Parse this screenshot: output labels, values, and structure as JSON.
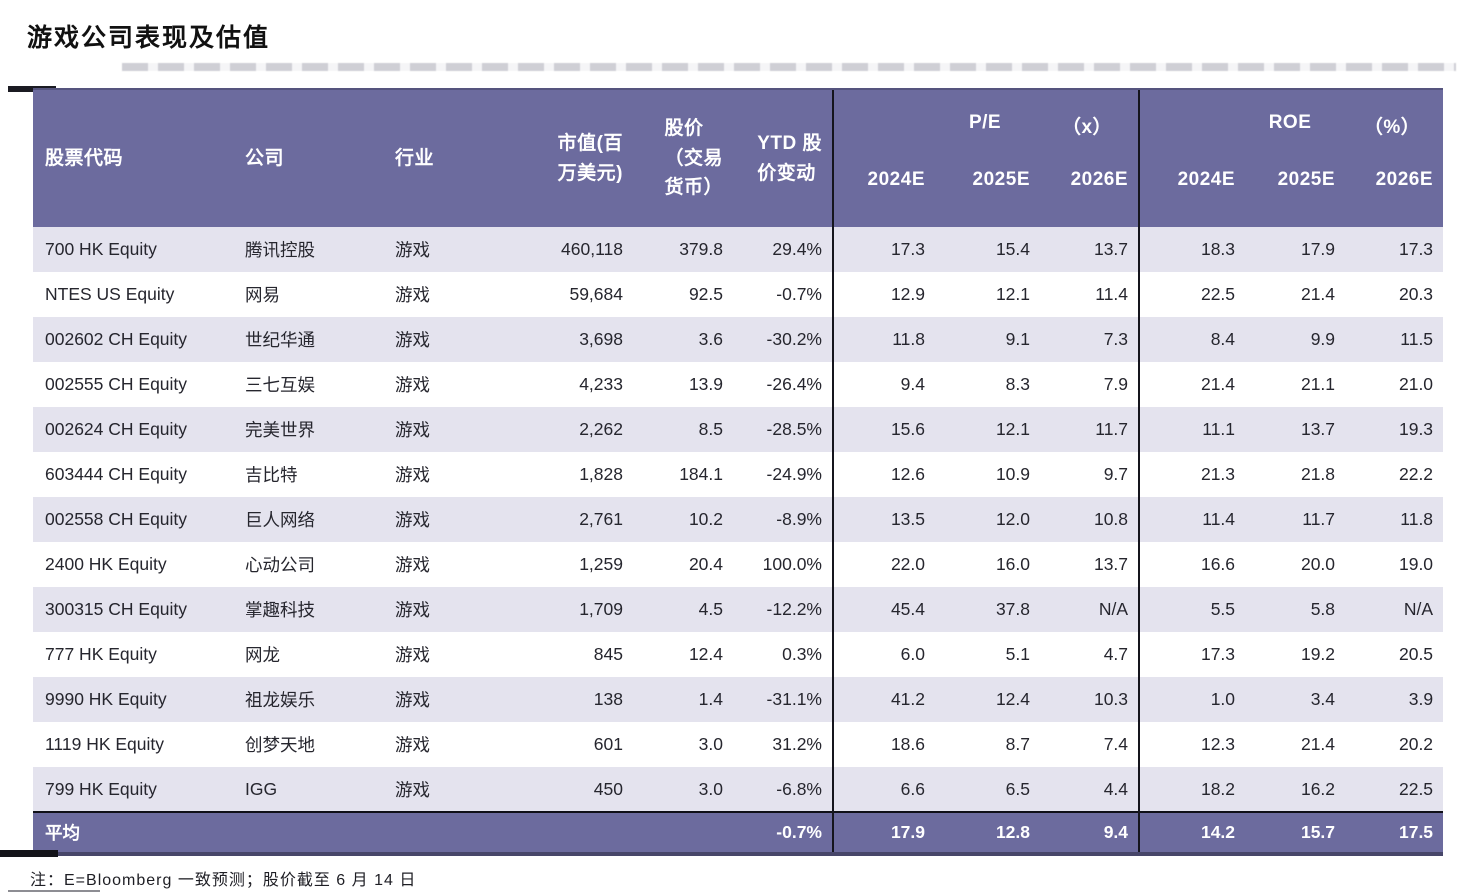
{
  "title": "游戏公司表现及估值",
  "colors": {
    "header_purple": "#6c6b9e",
    "stripe_lavender": "#e4e3ee",
    "divider_black": "#15151d",
    "text_dark": "#26262e"
  },
  "table": {
    "headers": {
      "code": "股票代码",
      "company": "公司",
      "industry": "行业",
      "market_cap": "市值(百\n万美元)",
      "price": "股价\n（交易\n货币）",
      "ytd": "YTD 股\n价变动",
      "pe_group": {
        "label": "P/E",
        "unit": "（x）"
      },
      "roe_group": {
        "label": "ROE",
        "unit": "（%）"
      },
      "pe_years": [
        "2024E",
        "2025E",
        "2026E"
      ],
      "roe_years": [
        "2024E",
        "2025E",
        "2026E"
      ]
    },
    "rows": [
      {
        "code": "700 HK Equity",
        "company": "腾讯控股",
        "industry": "游戏",
        "market_cap": "460,118",
        "price": "379.8",
        "ytd": "29.4%",
        "pe_2024": "17.3",
        "pe_2025": "15.4",
        "pe_2026": "13.7",
        "roe_2024": "18.3",
        "roe_2025": "17.9",
        "roe_2026": "17.3"
      },
      {
        "code": "NTES US Equity",
        "company": "网易",
        "industry": "游戏",
        "market_cap": "59,684",
        "price": "92.5",
        "ytd": "-0.7%",
        "pe_2024": "12.9",
        "pe_2025": "12.1",
        "pe_2026": "11.4",
        "roe_2024": "22.5",
        "roe_2025": "21.4",
        "roe_2026": "20.3"
      },
      {
        "code": "002602 CH Equity",
        "company": "世纪华通",
        "industry": "游戏",
        "market_cap": "3,698",
        "price": "3.6",
        "ytd": "-30.2%",
        "pe_2024": "11.8",
        "pe_2025": "9.1",
        "pe_2026": "7.3",
        "roe_2024": "8.4",
        "roe_2025": "9.9",
        "roe_2026": "11.5"
      },
      {
        "code": "002555 CH Equity",
        "company": "三七互娱",
        "industry": "游戏",
        "market_cap": "4,233",
        "price": "13.9",
        "ytd": "-26.4%",
        "pe_2024": "9.4",
        "pe_2025": "8.3",
        "pe_2026": "7.9",
        "roe_2024": "21.4",
        "roe_2025": "21.1",
        "roe_2026": "21.0"
      },
      {
        "code": "002624 CH Equity",
        "company": "完美世界",
        "industry": "游戏",
        "market_cap": "2,262",
        "price": "8.5",
        "ytd": "-28.5%",
        "pe_2024": "15.6",
        "pe_2025": "12.1",
        "pe_2026": "11.7",
        "roe_2024": "11.1",
        "roe_2025": "13.7",
        "roe_2026": "19.3"
      },
      {
        "code": "603444 CH Equity",
        "company": "吉比特",
        "industry": "游戏",
        "market_cap": "1,828",
        "price": "184.1",
        "ytd": "-24.9%",
        "pe_2024": "12.6",
        "pe_2025": "10.9",
        "pe_2026": "9.7",
        "roe_2024": "21.3",
        "roe_2025": "21.8",
        "roe_2026": "22.2"
      },
      {
        "code": "002558 CH Equity",
        "company": "巨人网络",
        "industry": "游戏",
        "market_cap": "2,761",
        "price": "10.2",
        "ytd": "-8.9%",
        "pe_2024": "13.5",
        "pe_2025": "12.0",
        "pe_2026": "10.8",
        "roe_2024": "11.4",
        "roe_2025": "11.7",
        "roe_2026": "11.8"
      },
      {
        "code": "2400 HK Equity",
        "company": "心动公司",
        "industry": "游戏",
        "market_cap": "1,259",
        "price": "20.4",
        "ytd": "100.0%",
        "pe_2024": "22.0",
        "pe_2025": "16.0",
        "pe_2026": "13.7",
        "roe_2024": "16.6",
        "roe_2025": "20.0",
        "roe_2026": "19.0"
      },
      {
        "code": "300315 CH Equity",
        "company": "掌趣科技",
        "industry": "游戏",
        "market_cap": "1,709",
        "price": "4.5",
        "ytd": "-12.2%",
        "pe_2024": "45.4",
        "pe_2025": "37.8",
        "pe_2026": "N/A",
        "roe_2024": "5.5",
        "roe_2025": "5.8",
        "roe_2026": "N/A"
      },
      {
        "code": "777 HK Equity",
        "company": "网龙",
        "industry": "游戏",
        "market_cap": "845",
        "price": "12.4",
        "ytd": "0.3%",
        "pe_2024": "6.0",
        "pe_2025": "5.1",
        "pe_2026": "4.7",
        "roe_2024": "17.3",
        "roe_2025": "19.2",
        "roe_2026": "20.5"
      },
      {
        "code": "9990 HK Equity",
        "company": "祖龙娱乐",
        "industry": "游戏",
        "market_cap": "138",
        "price": "1.4",
        "ytd": "-31.1%",
        "pe_2024": "41.2",
        "pe_2025": "12.4",
        "pe_2026": "10.3",
        "roe_2024": "1.0",
        "roe_2025": "3.4",
        "roe_2026": "3.9"
      },
      {
        "code": "1119 HK Equity",
        "company": "创梦天地",
        "industry": "游戏",
        "market_cap": "601",
        "price": "3.0",
        "ytd": "31.2%",
        "pe_2024": "18.6",
        "pe_2025": "8.7",
        "pe_2026": "7.4",
        "roe_2024": "12.3",
        "roe_2025": "21.4",
        "roe_2026": "20.2"
      },
      {
        "code": "799 HK Equity",
        "company": "IGG",
        "industry": "游戏",
        "market_cap": "450",
        "price": "3.0",
        "ytd": "-6.8%",
        "pe_2024": "6.6",
        "pe_2025": "6.5",
        "pe_2026": "4.4",
        "roe_2024": "18.2",
        "roe_2025": "16.2",
        "roe_2026": "22.5"
      }
    ],
    "average": {
      "label": "平均",
      "company": "",
      "industry": "",
      "market_cap": "",
      "price": "",
      "ytd": "-0.7%",
      "pe_2024": "17.9",
      "pe_2025": "12.8",
      "pe_2026": "9.4",
      "roe_2024": "14.2",
      "roe_2025": "15.7",
      "roe_2026": "17.5"
    }
  },
  "note": "注：E=Bloomberg 一致预测；股价截至 6 月 14 日"
}
